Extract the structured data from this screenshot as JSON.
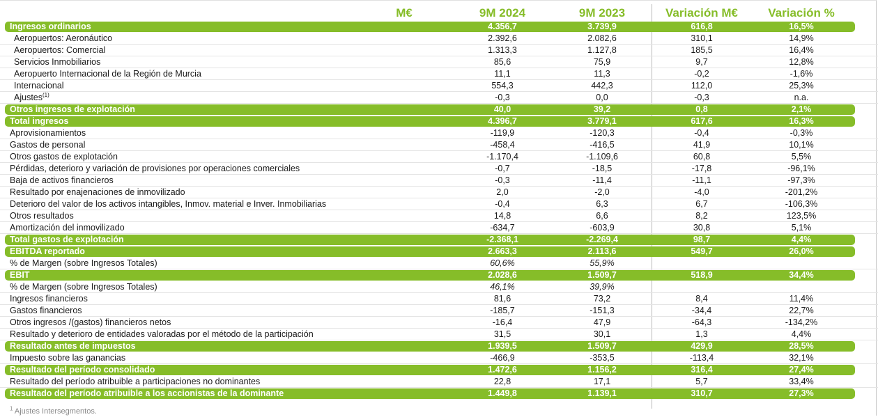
{
  "header": {
    "unit": "M€",
    "col1": "9M 2024",
    "col2": "9M 2023",
    "col3": "Variación M€",
    "col4": "Variación %"
  },
  "rows": [
    {
      "label": "Ingresos ordinarios",
      "v1": "4.356,7",
      "v2": "3.739,9",
      "v3": "616,8",
      "v4": "16,5%",
      "style": "hl"
    },
    {
      "label": "Aeropuertos: Aeronáutico",
      "v1": "2.392,6",
      "v2": "2.082,6",
      "v3": "310,1",
      "v4": "14,9%",
      "style": "sub"
    },
    {
      "label": "Aeropuertos: Comercial",
      "v1": "1.313,3",
      "v2": "1.127,8",
      "v3": "185,5",
      "v4": "16,4%",
      "style": "sub"
    },
    {
      "label": "Servicios Inmobiliarios",
      "v1": "85,6",
      "v2": "75,9",
      "v3": "9,7",
      "v4": "12,8%",
      "style": "sub"
    },
    {
      "label": "Aeropuerto Internacional de la Región de Murcia",
      "v1": "11,1",
      "v2": "11,3",
      "v3": "-0,2",
      "v4": "-1,6%",
      "style": "sub"
    },
    {
      "label": "Internacional",
      "v1": "554,3",
      "v2": "442,3",
      "v3": "112,0",
      "v4": "25,3%",
      "style": "sub"
    },
    {
      "label": "Ajustes",
      "sup": "(1)",
      "v1": "-0,3",
      "v2": "0,0",
      "v3": "-0,3",
      "v4": "n.a.",
      "style": "sub"
    },
    {
      "label": "Otros ingresos de explotación",
      "v1": "40,0",
      "v2": "39,2",
      "v3": "0,8",
      "v4": "2,1%",
      "style": "hl"
    },
    {
      "label": "Total ingresos",
      "v1": "4.396,7",
      "v2": "3.779,1",
      "v3": "617,6",
      "v4": "16,3%",
      "style": "hl"
    },
    {
      "label": "Aprovisionamientos",
      "v1": "-119,9",
      "v2": "-120,3",
      "v3": "-0,4",
      "v4": "-0,3%",
      "style": ""
    },
    {
      "label": "Gastos de personal",
      "v1": "-458,4",
      "v2": "-416,5",
      "v3": "41,9",
      "v4": "10,1%",
      "style": ""
    },
    {
      "label": "Otros gastos de explotación",
      "v1": "-1.170,4",
      "v2": "-1.109,6",
      "v3": "60,8",
      "v4": "5,5%",
      "style": ""
    },
    {
      "label": "Pérdidas, deterioro y variación de provisiones por operaciones comerciales",
      "v1": "-0,7",
      "v2": "-18,5",
      "v3": "-17,8",
      "v4": "-96,1%",
      "style": ""
    },
    {
      "label": "Baja de activos financieros",
      "v1": "-0,3",
      "v2": "-11,4",
      "v3": "-11,1",
      "v4": "-97,3%",
      "style": ""
    },
    {
      "label": "Resultado por enajenaciones de inmovilizado",
      "v1": "2,0",
      "v2": "-2,0",
      "v3": "-4,0",
      "v4": "-201,2%",
      "style": ""
    },
    {
      "label": "Deterioro del valor de los activos intangibles, Inmov. material e Inver. Inmobiliarias",
      "v1": "-0,4",
      "v2": "6,3",
      "v3": "6,7",
      "v4": "-106,3%",
      "style": ""
    },
    {
      "label": "Otros resultados",
      "v1": "14,8",
      "v2": "6,6",
      "v3": "8,2",
      "v4": "123,5%",
      "style": ""
    },
    {
      "label": "Amortización del inmovilizado",
      "v1": "-634,7",
      "v2": "-603,9",
      "v3": "30,8",
      "v4": "5,1%",
      "style": ""
    },
    {
      "label": "Total gastos de explotación",
      "v1": "-2.368,1",
      "v2": "-2.269,4",
      "v3": "98,7",
      "v4": "4,4%",
      "style": "hl"
    },
    {
      "label": "EBITDA reportado",
      "v1": "2.663,3",
      "v2": "2.113,6",
      "v3": "549,7",
      "v4": "26,0%",
      "style": "hl"
    },
    {
      "label": "% de Margen (sobre Ingresos Totales)",
      "v1": "60,6%",
      "v2": "55,9%",
      "v3": "",
      "v4": "",
      "style": "it"
    },
    {
      "label": "EBIT",
      "v1": "2.028,6",
      "v2": "1.509,7",
      "v3": "518,9",
      "v4": "34,4%",
      "style": "hl"
    },
    {
      "label": "% de Margen (sobre Ingresos Totales)",
      "v1": "46,1%",
      "v2": "39,9%",
      "v3": "",
      "v4": "",
      "style": "it"
    },
    {
      "label": "Ingresos financieros",
      "v1": "81,6",
      "v2": "73,2",
      "v3": "8,4",
      "v4": "11,4%",
      "style": ""
    },
    {
      "label": "Gastos financieros",
      "v1": "-185,7",
      "v2": "-151,3",
      "v3": "-34,4",
      "v4": "22,7%",
      "style": ""
    },
    {
      "label": "Otros ingresos /(gastos) financieros netos",
      "v1": "-16,4",
      "v2": "47,9",
      "v3": "-64,3",
      "v4": "-134,2%",
      "style": ""
    },
    {
      "label": "Resultado y deterioro de entidades valoradas por el método de la participación",
      "v1": "31,5",
      "v2": "30,1",
      "v3": "1,3",
      "v4": "4,4%",
      "style": ""
    },
    {
      "label": "Resultado antes de impuestos",
      "v1": "1.939,5",
      "v2": "1.509,7",
      "v3": "429,9",
      "v4": "28,5%",
      "style": "hl"
    },
    {
      "label": "Impuesto sobre las ganancias",
      "v1": "-466,9",
      "v2": "-353,5",
      "v3": "-113,4",
      "v4": "32,1%",
      "style": ""
    },
    {
      "label": "Resultado del período consolidado",
      "v1": "1.472,6",
      "v2": "1.156,2",
      "v3": "316,4",
      "v4": "27,4%",
      "style": "hl"
    },
    {
      "label": "Resultado del período atribuible a participaciones no dominantes",
      "v1": "22,8",
      "v2": "17,1",
      "v3": "5,7",
      "v4": "33,4%",
      "style": ""
    },
    {
      "label": "Resultado del período atribuible a los accionistas de la dominante",
      "v1": "1.449,8",
      "v2": "1.139,1",
      "v3": "310,7",
      "v4": "27,3%",
      "style": "hl"
    }
  ],
  "footnote": {
    "mark": "1",
    "text": "Ajustes Intersegmentos."
  },
  "colors": {
    "accent": "#86bd29",
    "text": "#1a1a1a",
    "divider": "#b8b8b8"
  }
}
